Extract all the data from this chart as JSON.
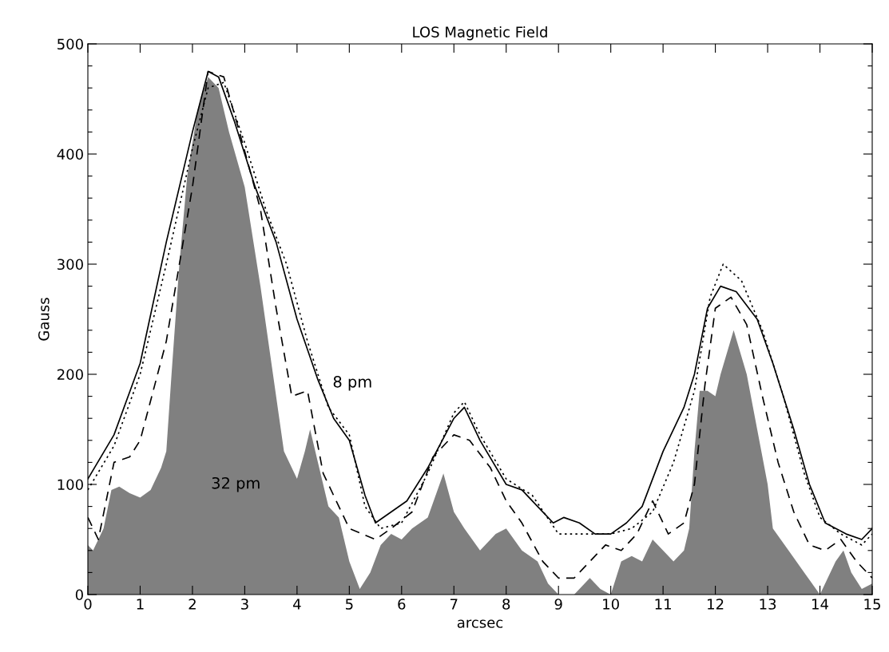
{
  "chart_data": {
    "type": "line",
    "title": "LOS Magnetic Field",
    "xlabel": "arcsec",
    "ylabel": "Gauss",
    "xlim": [
      0,
      15
    ],
    "xticks": [
      0,
      1,
      2,
      3,
      4,
      5,
      6,
      7,
      8,
      9,
      10,
      11,
      12,
      13,
      14,
      15
    ],
    "ylim": [
      0,
      500
    ],
    "yticks": [
      0,
      {
        "value": 20,
        "label": null
      },
      {
        "value": 40,
        "label": null
      },
      {
        "value": 60,
        "label": null
      },
      {
        "value": 80,
        "label": null
      },
      100,
      {
        "value": 120,
        "label": null
      },
      {
        "value": 140,
        "label": null
      },
      {
        "value": 160,
        "label": null
      },
      {
        "value": 180,
        "label": null
      },
      200,
      {
        "value": 220,
        "label": null
      },
      {
        "value": 240,
        "label": null
      },
      {
        "value": 260,
        "label": null
      },
      {
        "value": 280,
        "label": null
      },
      300,
      {
        "value": 320,
        "label": null
      },
      {
        "value": 340,
        "label": null
      },
      {
        "value": 360,
        "label": null
      },
      {
        "value": 380,
        "label": null
      },
      400,
      {
        "value": 420,
        "label": null
      },
      {
        "value": 440,
        "label": null
      },
      {
        "value": 460,
        "label": null
      },
      {
        "value": 480,
        "label": null
      },
      500
    ],
    "grid": false,
    "legend": false,
    "annotations": [
      "8 pm",
      "32 pm"
    ],
    "series": [
      {
        "type": "area",
        "color": "#808080",
        "x": [
          0,
          0.1,
          0.3,
          0.45,
          0.6,
          0.8,
          1.0,
          1.2,
          1.4,
          1.5,
          1.6,
          1.75,
          1.9,
          2.1,
          2.3,
          2.5,
          2.7,
          3.0,
          3.3,
          3.6,
          3.75,
          4.0,
          4.15,
          4.25,
          4.4,
          4.6,
          4.8,
          5.0,
          5.2,
          5.4,
          5.6,
          5.8,
          6.0,
          6.2,
          6.5,
          6.8,
          7.0,
          7.2,
          7.5,
          7.8,
          8.0,
          8.3,
          8.6,
          8.8,
          9.0,
          9.3,
          9.6,
          9.8,
          10.0,
          10.2,
          10.4,
          10.6,
          10.8,
          11.0,
          11.2,
          11.4,
          11.5,
          11.6,
          11.7,
          11.85,
          12.0,
          12.1,
          12.35,
          12.6,
          12.8,
          13.0,
          13.1,
          13.4,
          13.7,
          14.0,
          14.3,
          14.45,
          14.6,
          14.8,
          15.0
        ],
        "values": [
          45,
          40,
          60,
          95,
          98,
          92,
          88,
          95,
          115,
          130,
          200,
          300,
          380,
          440,
          470,
          460,
          420,
          370,
          280,
          180,
          130,
          105,
          130,
          150,
          120,
          80,
          70,
          30,
          5,
          20,
          45,
          55,
          50,
          60,
          70,
          110,
          75,
          60,
          40,
          55,
          60,
          40,
          30,
          10,
          0,
          0,
          15,
          5,
          0,
          30,
          35,
          30,
          50,
          40,
          30,
          40,
          60,
          130,
          185,
          185,
          180,
          200,
          240,
          200,
          150,
          100,
          60,
          40,
          20,
          0,
          30,
          40,
          20,
          5,
          10
        ]
      },
      {
        "line_style": "solid",
        "color": "#000000",
        "x": [
          0,
          0.5,
          1,
          1.5,
          2,
          2.3,
          2.5,
          2.8,
          3.2,
          3.6,
          4.0,
          4.4,
          4.7,
          5.0,
          5.3,
          5.5,
          5.8,
          6.1,
          6.5,
          7.0,
          7.2,
          7.5,
          8.0,
          8.3,
          8.6,
          8.9,
          9.1,
          9.4,
          9.7,
          10.0,
          10.3,
          10.6,
          11.0,
          11.4,
          11.6,
          11.85,
          12.1,
          12.4,
          12.8,
          13.1,
          13.5,
          13.8,
          14.1,
          14.5,
          14.8,
          15
        ],
        "values": [
          105,
          145,
          210,
          320,
          420,
          475,
          470,
          430,
          370,
          320,
          250,
          195,
          160,
          140,
          90,
          65,
          75,
          85,
          115,
          160,
          170,
          140,
          100,
          95,
          80,
          65,
          70,
          65,
          55,
          55,
          65,
          80,
          130,
          170,
          200,
          260,
          280,
          275,
          250,
          210,
          150,
          100,
          65,
          55,
          50,
          60
        ]
      },
      {
        "line_style": "dotted",
        "color": "#000000",
        "x": [
          0,
          0.5,
          1,
          1.5,
          2,
          2.3,
          2.6,
          3.0,
          3.4,
          3.8,
          4.2,
          4.6,
          5.0,
          5.3,
          5.6,
          6.0,
          6.5,
          7.0,
          7.2,
          7.5,
          8.0,
          8.5,
          9.0,
          9.5,
          10.0,
          10.4,
          10.8,
          11.2,
          11.6,
          11.9,
          12.15,
          12.5,
          12.9,
          13.3,
          13.7,
          14.0,
          14.4,
          14.8,
          15
        ],
        "values": [
          95,
          135,
          200,
          300,
          405,
          460,
          465,
          410,
          350,
          300,
          230,
          170,
          145,
          80,
          60,
          65,
          110,
          165,
          175,
          145,
          105,
          90,
          55,
          55,
          55,
          60,
          75,
          120,
          185,
          270,
          300,
          285,
          240,
          180,
          110,
          70,
          55,
          45,
          55
        ]
      },
      {
        "line_style": "dashed",
        "color": "#000000",
        "x": [
          0,
          0.2,
          0.5,
          0.8,
          1,
          1.5,
          2,
          2.3,
          2.6,
          2.9,
          3.3,
          3.6,
          3.9,
          4.2,
          4.5,
          4.8,
          5.0,
          5.5,
          5.8,
          6.2,
          6.6,
          7.0,
          7.3,
          7.7,
          8.0,
          8.3,
          8.7,
          9.0,
          9.3,
          9.6,
          9.9,
          10.2,
          10.5,
          10.8,
          11.1,
          11.4,
          11.6,
          11.8,
          12.0,
          12.3,
          12.6,
          12.9,
          13.2,
          13.5,
          13.8,
          14.1,
          14.4,
          14.7,
          15.0
        ],
        "values": [
          70,
          50,
          120,
          125,
          140,
          230,
          370,
          475,
          470,
          420,
          350,
          260,
          180,
          185,
          110,
          80,
          60,
          50,
          60,
          75,
          125,
          145,
          140,
          115,
          85,
          65,
          30,
          15,
          15,
          30,
          45,
          40,
          55,
          85,
          55,
          65,
          100,
          190,
          260,
          270,
          245,
          180,
          120,
          75,
          45,
          40,
          50,
          30,
          15
        ]
      }
    ]
  }
}
